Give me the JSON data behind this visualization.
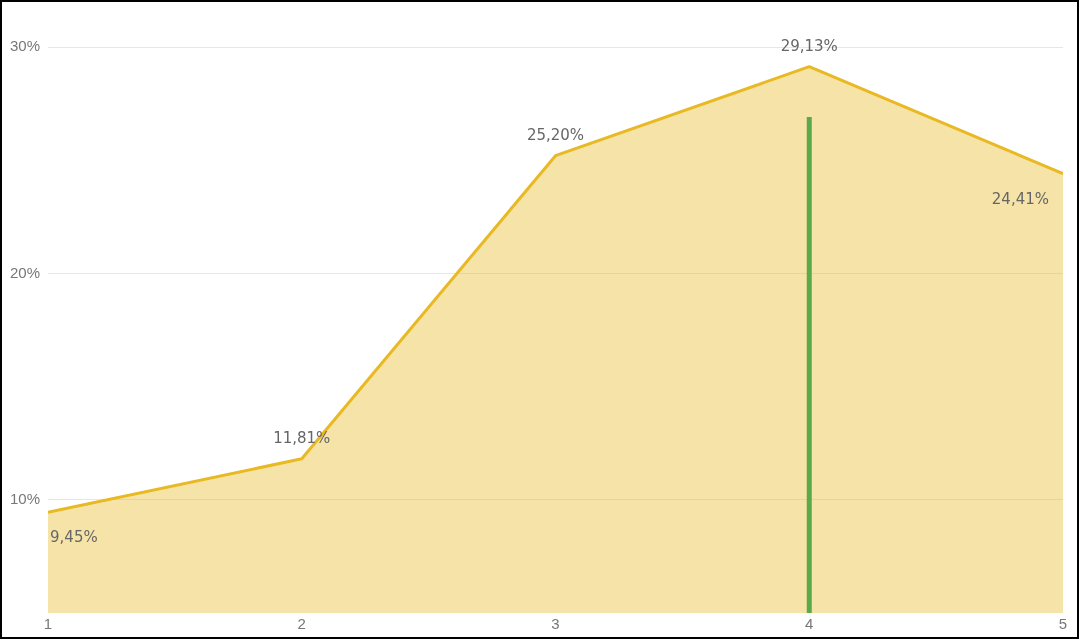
{
  "chart_data": {
    "type": "area",
    "x": [
      1,
      2,
      3,
      4,
      5
    ],
    "xlim": [
      1,
      5
    ],
    "xticks": [
      1,
      2,
      3,
      4,
      5
    ],
    "ylim": [
      5,
      30
    ],
    "yticks": [
      {
        "value": 10,
        "label": "10%"
      },
      {
        "value": 20,
        "label": "20%"
      },
      {
        "value": 30,
        "label": "30%"
      }
    ],
    "grid": "y",
    "legend": false,
    "marker": "none",
    "series": [
      {
        "color": "#e8b923",
        "values": [
          9.45,
          11.81,
          25.2,
          29.13,
          24.41
        ],
        "value_labels": [
          "9,45%",
          "11,81%",
          "25,20%",
          "29,13%",
          "24,41%"
        ]
      }
    ],
    "ref_lines": [
      {
        "axis": "x",
        "value": 4,
        "color": "#5aaa4a"
      }
    ]
  }
}
